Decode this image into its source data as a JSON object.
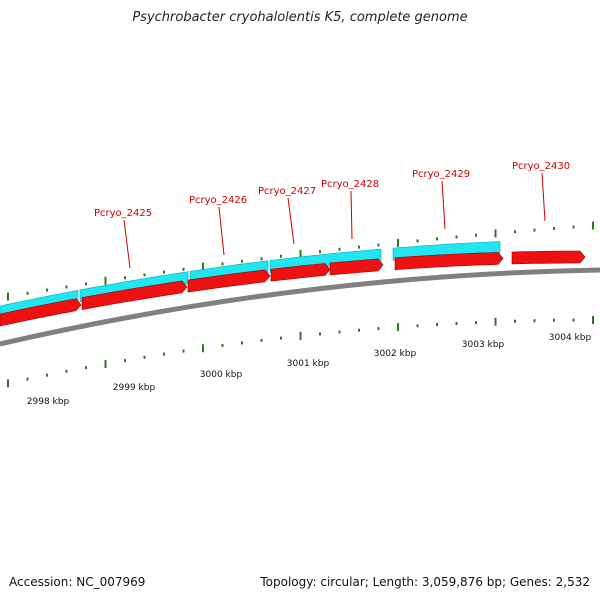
{
  "title": "Psychrobacter cryohalolentis K5, complete genome",
  "accession_label": "Accession: NC_007969",
  "summary_label": "Topology: circular; Length: 3,059,876 bp; Genes: 2,532",
  "colors": {
    "forward_gene": "#1fe6f0",
    "reverse_gene": "#ee1111",
    "backbone": "#808080",
    "tick": "#2a7a1e",
    "label": "#cc0000"
  },
  "scale_labels": [
    "2998 kbp",
    "2999 kbp",
    "3000 kbp",
    "3001 kbp",
    "3002 kbp",
    "3003 kbp",
    "3004 kbp"
  ],
  "gene_labels": [
    "Pcryo_2425",
    "Pcryo_2426",
    "Pcryo_2427",
    "Pcryo_2428",
    "Pcryo_2429",
    "Pcryo_2430"
  ]
}
